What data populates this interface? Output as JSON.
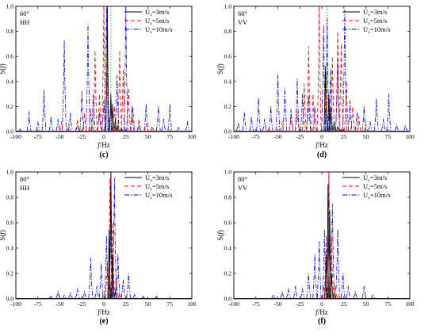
{
  "chart_data": [
    {
      "type": "line",
      "panel_label": "(c)",
      "annotation": [
        "60°",
        "HH"
      ],
      "xlabel": "f/Hz",
      "ylabel": "S(f)",
      "xlim": [
        -100,
        100
      ],
      "ylim": [
        0,
        1.0
      ],
      "xticks": [
        -100,
        -75,
        -50,
        -25,
        0,
        25,
        50,
        75,
        100
      ],
      "yticks": [
        0.0,
        0.2,
        0.4,
        0.6,
        0.8,
        1.0
      ],
      "legend_position": "top-right",
      "reference_lines": [
        {
          "x": 4,
          "color": "#00b000",
          "style": "dotted"
        },
        {
          "x": 8,
          "color": "#00b000",
          "style": "dotted"
        }
      ],
      "series": [
        {
          "name": "U_x=3m/s",
          "color": "#000000",
          "style": "solid",
          "peaks": [
            [
              4,
              1.0
            ],
            [
              8,
              0.3
            ],
            [
              10,
              0.22
            ],
            [
              13,
              0.1
            ],
            [
              16,
              0.05
            ],
            [
              20,
              0.03
            ]
          ]
        },
        {
          "name": "U_x=5m/s",
          "color": "#ff0000",
          "style": "dashed",
          "peaks": [
            [
              -48,
              0.08
            ],
            [
              -40,
              0.06
            ],
            [
              -30,
              0.1
            ],
            [
              -22,
              0.15
            ],
            [
              -15,
              0.18
            ],
            [
              -10,
              0.65
            ],
            [
              -5,
              0.3
            ],
            [
              0,
              1.0
            ],
            [
              12,
              0.2
            ],
            [
              18,
              0.65
            ],
            [
              22,
              0.5
            ],
            [
              28,
              0.35
            ],
            [
              33,
              0.2
            ],
            [
              40,
              0.1
            ],
            [
              48,
              0.06
            ],
            [
              55,
              0.04
            ]
          ]
        },
        {
          "name": "U_x=10m/s",
          "color": "#0000ff",
          "style": "dash-dot",
          "peaks": [
            [
              -95,
              0.02
            ],
            [
              -85,
              0.16
            ],
            [
              -75,
              0.08
            ],
            [
              -68,
              0.33
            ],
            [
              -60,
              0.12
            ],
            [
              -52,
              0.1
            ],
            [
              -45,
              0.73
            ],
            [
              -38,
              0.15
            ],
            [
              -30,
              0.05
            ],
            [
              -25,
              0.32
            ],
            [
              -18,
              0.86
            ],
            [
              -12,
              0.3
            ],
            [
              -5,
              0.15
            ],
            [
              0,
              0.25
            ],
            [
              3,
              1.0
            ],
            [
              8,
              0.27
            ],
            [
              15,
              0.45
            ],
            [
              25,
              1.0
            ],
            [
              32,
              0.2
            ],
            [
              40,
              0.05
            ],
            [
              48,
              0.22
            ],
            [
              55,
              0.04
            ],
            [
              62,
              0.2
            ],
            [
              68,
              0.1
            ],
            [
              75,
              0.22
            ],
            [
              85,
              0.04
            ],
            [
              95,
              0.08
            ]
          ]
        }
      ],
      "legend_entries": [
        "U",
        "x",
        "=3m/s",
        "U",
        "x",
        "=5m/s",
        "U",
        "x",
        "=10m/s"
      ]
    },
    {
      "type": "line",
      "panel_label": "(d)",
      "annotation": [
        "60°",
        "VV"
      ],
      "xlabel": "f/Hz",
      "ylabel": "S(f)",
      "xlim": [
        -100,
        100
      ],
      "ylim": [
        0,
        1.0
      ],
      "xticks": [
        -100,
        -75,
        -50,
        -25,
        0,
        25,
        50,
        75,
        100
      ],
      "yticks": [
        0.0,
        0.2,
        0.4,
        0.6,
        0.8,
        1.0
      ],
      "legend_position": "top-right",
      "reference_lines": [
        {
          "x": 6,
          "color": "#00b000",
          "style": "dotted"
        }
      ],
      "series": [
        {
          "name": "U_x=3m/s",
          "color": "#000000",
          "style": "solid",
          "peaks": [
            [
              4,
              0.52
            ],
            [
              8,
              0.3
            ],
            [
              10,
              0.2
            ],
            [
              14,
              0.08
            ],
            [
              18,
              0.04
            ],
            [
              22,
              0.02
            ]
          ]
        },
        {
          "name": "U_x=5m/s",
          "color": "#ff0000",
          "style": "dashed",
          "peaks": [
            [
              -60,
              0.03
            ],
            [
              -45,
              0.08
            ],
            [
              -35,
              0.12
            ],
            [
              -28,
              0.16
            ],
            [
              -20,
              0.38
            ],
            [
              -15,
              0.68
            ],
            [
              -10,
              0.3
            ],
            [
              -3,
              1.0
            ],
            [
              5,
              0.45
            ],
            [
              12,
              0.6
            ],
            [
              18,
              0.8
            ],
            [
              22,
              0.7
            ],
            [
              28,
              0.4
            ],
            [
              35,
              0.2
            ],
            [
              42,
              0.12
            ],
            [
              50,
              0.06
            ]
          ]
        },
        {
          "name": "U_x=10m/s",
          "color": "#0000ff",
          "style": "dash-dot",
          "peaks": [
            [
              -95,
              0.07
            ],
            [
              -88,
              0.15
            ],
            [
              -80,
              0.12
            ],
            [
              -72,
              0.27
            ],
            [
              -65,
              0.1
            ],
            [
              -58,
              0.2
            ],
            [
              -50,
              0.45
            ],
            [
              -42,
              0.35
            ],
            [
              -35,
              0.18
            ],
            [
              -28,
              0.42
            ],
            [
              -22,
              0.3
            ],
            [
              -15,
              0.28
            ],
            [
              -8,
              0.2
            ],
            [
              2,
              0.85
            ],
            [
              6,
              0.9
            ],
            [
              10,
              0.5
            ],
            [
              18,
              0.55
            ],
            [
              26,
              0.97
            ],
            [
              32,
              0.25
            ],
            [
              40,
              0.15
            ],
            [
              48,
              0.2
            ],
            [
              55,
              0.08
            ],
            [
              62,
              0.26
            ],
            [
              70,
              0.1
            ],
            [
              76,
              0.3
            ],
            [
              85,
              0.06
            ],
            [
              95,
              0.05
            ]
          ]
        }
      ],
      "legend_entries": [
        "U",
        "x",
        "=3m/s",
        "U",
        "x",
        "=5m/s",
        "U",
        "x",
        "=10m/s"
      ]
    },
    {
      "type": "line",
      "panel_label": "(e)",
      "annotation": [
        "80°",
        "HH"
      ],
      "xlabel": "f/Hz",
      "ylabel": "S(f)",
      "xlim": [
        -100,
        100
      ],
      "ylim": [
        0,
        1.0
      ],
      "xticks": [
        -100,
        -75,
        -50,
        -25,
        0,
        25,
        50,
        75,
        100
      ],
      "yticks": [
        0.0,
        0.2,
        0.4,
        0.6,
        0.8,
        1.0
      ],
      "legend_position": "top-right",
      "reference_lines": [],
      "series": [
        {
          "name": "U_x=3m/s",
          "color": "#000000",
          "style": "solid",
          "peaks": [
            [
              6,
              0.55
            ],
            [
              8,
              1.0
            ],
            [
              10,
              0.35
            ],
            [
              13,
              0.06
            ]
          ]
        },
        {
          "name": "U_x=5m/s",
          "color": "#ff0000",
          "style": "dashed",
          "peaks": [
            [
              0,
              0.06
            ],
            [
              4,
              0.3
            ],
            [
              7,
              0.95
            ],
            [
              10,
              0.6
            ],
            [
              14,
              0.15
            ],
            [
              18,
              0.04
            ]
          ]
        },
        {
          "name": "U_x=10m/s",
          "color": "#0000ff",
          "style": "dash-dot",
          "peaks": [
            [
              -60,
              0.02
            ],
            [
              -52,
              0.06
            ],
            [
              -45,
              0.03
            ],
            [
              -38,
              0.05
            ],
            [
              -30,
              0.08
            ],
            [
              -22,
              0.06
            ],
            [
              -15,
              0.32
            ],
            [
              -8,
              0.1
            ],
            [
              -3,
              0.28
            ],
            [
              3,
              0.5
            ],
            [
              8,
              1.0
            ],
            [
              12,
              0.95
            ],
            [
              16,
              0.35
            ],
            [
              22,
              0.15
            ],
            [
              28,
              0.2
            ],
            [
              35,
              0.04
            ],
            [
              45,
              0.02
            ],
            [
              60,
              0.02
            ]
          ]
        }
      ],
      "legend_entries": [
        "U",
        "x",
        "=3m/s",
        "U",
        "x",
        "=5m/s",
        "U",
        "x",
        "=10m/s"
      ]
    },
    {
      "type": "line",
      "panel_label": "(f)",
      "annotation": [
        "80°",
        "VV"
      ],
      "xlabel": "f/Hz",
      "ylabel": "S(f)",
      "xlim": [
        -100,
        100
      ],
      "ylim": [
        0,
        1.0
      ],
      "xticks": [
        -100,
        -75,
        -50,
        -25,
        0,
        25,
        50,
        75,
        100
      ],
      "yticks": [
        0.0,
        0.2,
        0.4,
        0.6,
        0.8,
        1.0
      ],
      "legend_position": "top-right",
      "reference_lines": [],
      "series": [
        {
          "name": "U_x=3m/s",
          "color": "#000000",
          "style": "solid",
          "peaks": [
            [
              5,
              0.35
            ],
            [
              7,
              0.9
            ],
            [
              9,
              0.7
            ],
            [
              11,
              0.2
            ],
            [
              14,
              0.04
            ]
          ]
        },
        {
          "name": "U_x=5m/s",
          "color": "#ff0000",
          "style": "dashed",
          "peaks": [
            [
              2,
              0.1
            ],
            [
              5,
              0.5
            ],
            [
              8,
              1.0
            ],
            [
              11,
              0.5
            ],
            [
              15,
              0.1
            ],
            [
              19,
              0.03
            ]
          ]
        },
        {
          "name": "U_x=10m/s",
          "color": "#0000ff",
          "style": "dash-dot",
          "peaks": [
            [
              -55,
              0.03
            ],
            [
              -45,
              0.06
            ],
            [
              -38,
              0.08
            ],
            [
              -30,
              0.1
            ],
            [
              -22,
              0.08
            ],
            [
              -15,
              0.2
            ],
            [
              -8,
              0.35
            ],
            [
              -3,
              0.45
            ],
            [
              3,
              0.55
            ],
            [
              8,
              1.0
            ],
            [
              12,
              0.75
            ],
            [
              18,
              0.55
            ],
            [
              24,
              0.2
            ],
            [
              30,
              0.1
            ],
            [
              38,
              0.06
            ],
            [
              48,
              0.1
            ],
            [
              58,
              0.03
            ]
          ]
        }
      ],
      "legend_entries": [
        "U",
        "x",
        "=3m/s",
        "U",
        "x",
        "=5m/s",
        "U",
        "x",
        "=10m/s"
      ]
    }
  ]
}
